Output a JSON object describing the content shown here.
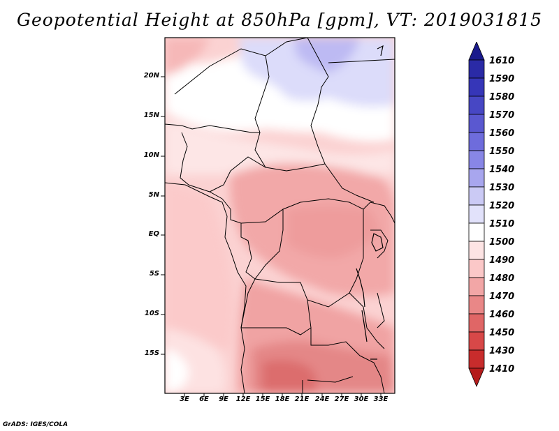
{
  "title": "Geopotential Height at 850hPa [gpm], VT: 2019031815",
  "credit": "GrADS: IGES/COLA",
  "map": {
    "region": "Central Africa",
    "lat_labels": [
      "20N",
      "15N",
      "10N",
      "5N",
      "EQ",
      "5S",
      "10S",
      "15S"
    ],
    "lon_labels": [
      "3E",
      "6E",
      "9E",
      "12E",
      "15E",
      "18E",
      "21E",
      "24E",
      "27E",
      "30E",
      "33E"
    ]
  },
  "legend": {
    "labels": [
      "1610",
      "1590",
      "1580",
      "1570",
      "1560",
      "1550",
      "1540",
      "1530",
      "1520",
      "1510",
      "1500",
      "1490",
      "1480",
      "1470",
      "1460",
      "1450",
      "1430",
      "1410"
    ],
    "colors": [
      "#1a1a8c",
      "#2a2aa6",
      "#3636b8",
      "#4747c4",
      "#5a58d0",
      "#6e6cdc",
      "#8886e6",
      "#a8a6ee",
      "#cbcaf5",
      "#e2e2fb",
      "#ffffff",
      "#fde4e4",
      "#fbc8c8",
      "#f2a6a6",
      "#e98787",
      "#e06666",
      "#d84848",
      "#c82c2c",
      "#b41c1c"
    ]
  }
}
